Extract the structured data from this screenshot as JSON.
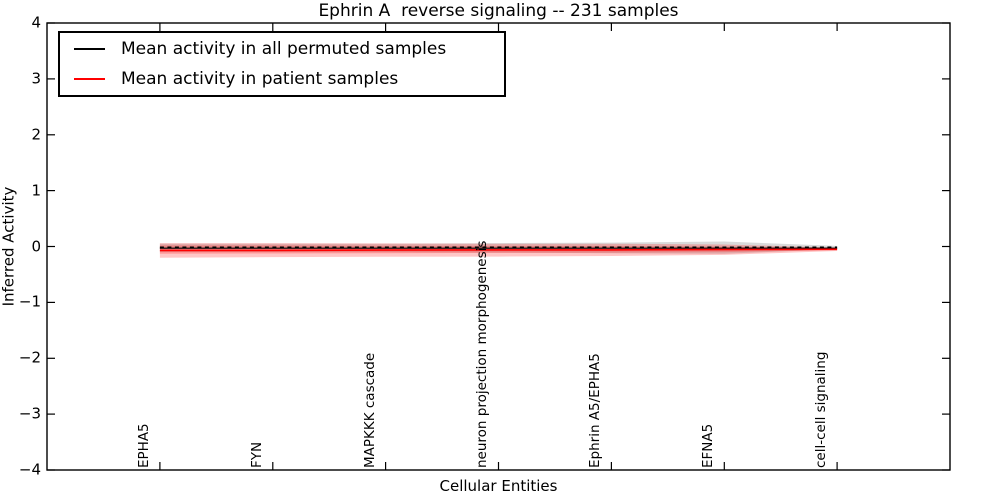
{
  "title": "Ephrin A  reverse signaling -- 231 samples",
  "xlabel": "Cellular Entities",
  "ylabel": "Inferred Activity",
  "yticks": [
    "4",
    "3",
    "2",
    "1",
    "0",
    "−1",
    "−2",
    "−3",
    "−4"
  ],
  "legend": {
    "items": [
      {
        "label": "Mean activity in all permuted samples",
        "color": "#000000"
      },
      {
        "label": "Mean activity in patient samples",
        "color": "#ff0000"
      }
    ]
  },
  "colors": {
    "permuted_line": "#000000",
    "patient_line": "#ff0000",
    "patient_band": "rgba(255,0,0,0.22)",
    "permuted_band": "rgba(0,0,0,0.15)",
    "axis": "#000000"
  },
  "chart_data": {
    "type": "line",
    "title": "Ephrin A  reverse signaling -- 231 samples",
    "xlabel": "Cellular Entities",
    "ylabel": "Inferred Activity",
    "ylim": [
      -4,
      4
    ],
    "grid": false,
    "legend_position": "upper left",
    "categories": [
      "EPHA5",
      "FYN",
      "MAPKKK cascade",
      "neuron projection morphogenesis",
      "Ephrin A5/EPHA5",
      "EFNA5",
      "cell-cell signaling"
    ],
    "series": [
      {
        "name": "Mean activity in all permuted samples",
        "color": "#000000",
        "style": "dashed-over-solid",
        "values": [
          -0.03,
          -0.03,
          -0.03,
          -0.03,
          -0.03,
          -0.03,
          -0.03
        ]
      },
      {
        "name": "Mean activity in patient samples",
        "color": "#ff0000",
        "style": "solid",
        "values": [
          -0.07,
          -0.07,
          -0.065,
          -0.06,
          -0.06,
          -0.055,
          -0.05
        ]
      }
    ],
    "bands": [
      {
        "name": "permuted-samples-spread",
        "color": "rgba(0,0,0,0.15)",
        "upper": [
          0.05,
          0.05,
          0.05,
          0.06,
          0.07,
          0.09,
          0.01
        ],
        "lower": [
          -0.1,
          -0.1,
          -0.1,
          -0.11,
          -0.12,
          -0.13,
          -0.05
        ]
      },
      {
        "name": "patient-samples-spread-outer",
        "color": "rgba(255,0,0,0.22)",
        "upper": [
          0.06,
          0.06,
          0.055,
          0.05,
          0.05,
          0.035,
          -0.02
        ],
        "lower": [
          -0.2,
          -0.19,
          -0.185,
          -0.18,
          -0.17,
          -0.15,
          -0.08
        ]
      },
      {
        "name": "patient-samples-spread-inner",
        "color": "rgba(255,0,0,0.22)",
        "upper": [
          0.02,
          0.02,
          0.015,
          0.01,
          0.01,
          0.0,
          -0.03
        ],
        "lower": [
          -0.13,
          -0.125,
          -0.12,
          -0.115,
          -0.11,
          -0.1,
          -0.06
        ]
      }
    ]
  }
}
